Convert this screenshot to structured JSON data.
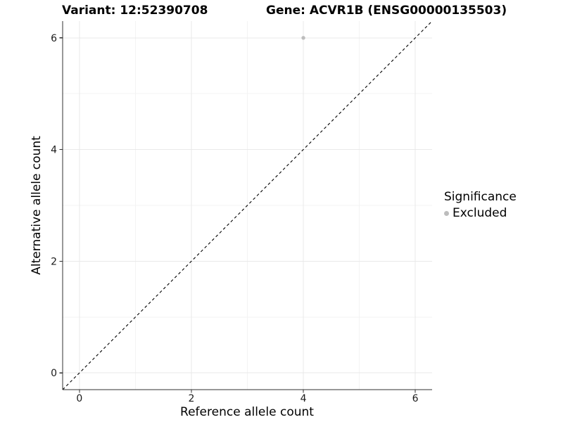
{
  "titles": {
    "variant": "Variant: 12:52390708",
    "gene": "Gene: ACVR1B (ENSG00000135503)"
  },
  "legend": {
    "title": "Significance",
    "items": [
      {
        "label": "Excluded",
        "color": "#bdbdbd"
      }
    ]
  },
  "chart_data": {
    "type": "scatter",
    "title": "Variant: 12:52390708    Gene: ACVR1B (ENSG00000135503)",
    "xlabel": "Reference allele count",
    "ylabel": "Alternative allele count",
    "series": [
      {
        "name": "Excluded",
        "color": "#bdbdbd",
        "points": [
          {
            "x": 4,
            "y": 6
          }
        ]
      }
    ],
    "reference_line": {
      "equation": "y = x",
      "style": "dashed",
      "color": "#000000"
    },
    "x_ticks": [
      0,
      2,
      4,
      6
    ],
    "y_ticks": [
      0,
      2,
      4,
      6
    ],
    "x_minor_ticks": [
      1,
      3,
      5
    ],
    "y_minor_ticks": [
      1,
      3,
      5
    ],
    "xlim": [
      -0.3,
      6.3
    ],
    "ylim": [
      -0.3,
      6.3
    ],
    "grid": true,
    "legend_position": "right"
  }
}
